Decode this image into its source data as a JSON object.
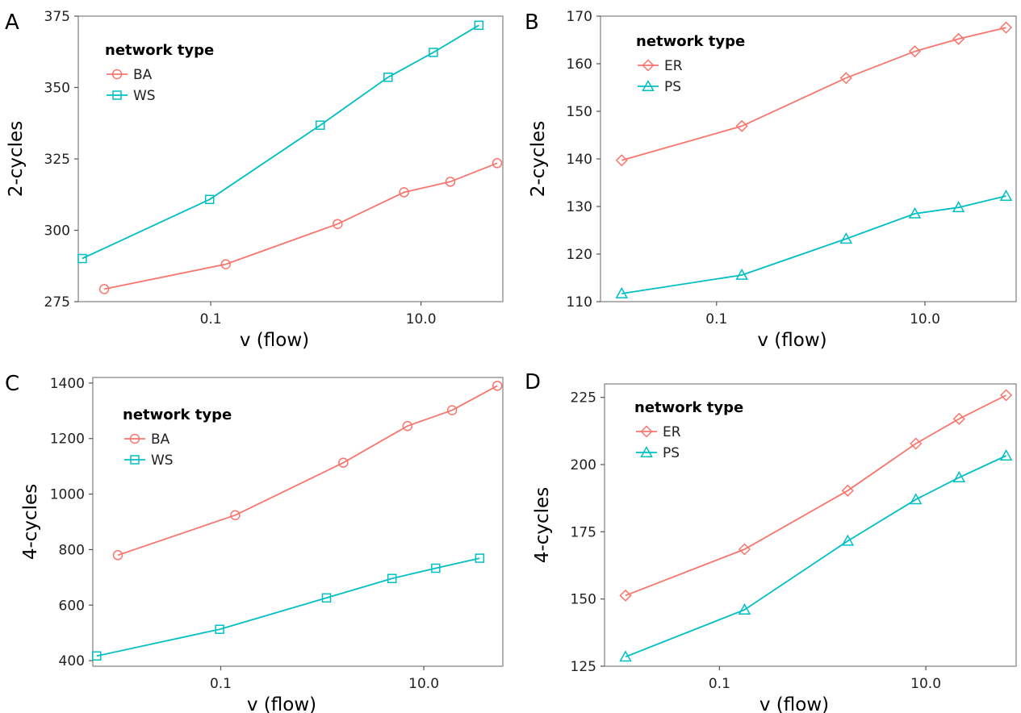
{
  "chart_data": [
    {
      "panel_label": "A",
      "type": "line",
      "xlabel": "v (flow)",
      "ylabel": "2-cycles",
      "x_scale": "log10",
      "xlim": [
        0.0055,
        60
      ],
      "ylim": [
        275,
        375
      ],
      "x_ticks": [
        0.1,
        10.0
      ],
      "x_tick_labels": [
        "0.1",
        "10.0"
      ],
      "y_ticks": [
        275,
        300,
        325,
        350,
        375
      ],
      "y_tick_labels": [
        "275",
        "300",
        "325",
        "350",
        "375"
      ],
      "legend_title": "network type",
      "legend_position": "top-left",
      "series": [
        {
          "name": "BA",
          "color": "#F8766D",
          "marker": "circle",
          "x": [
            0.0097,
            0.139,
            1.61,
            6.9,
            19.0,
            53.0
          ],
          "y": [
            279.4,
            288.1,
            302.2,
            313.3,
            317.0,
            323.5
          ]
        },
        {
          "name": "WS",
          "color": "#00BFC4",
          "marker": "square",
          "x": [
            0.006,
            0.0975,
            1.1,
            4.86,
            13.1,
            35.5
          ],
          "y": [
            290.1,
            310.8,
            336.8,
            353.6,
            362.3,
            371.8
          ]
        }
      ]
    },
    {
      "panel_label": "B",
      "type": "line",
      "xlabel": "v (flow)",
      "ylabel": "2-cycles",
      "x_scale": "log10",
      "xlim": [
        0.0077,
        75
      ],
      "ylim": [
        110,
        170
      ],
      "x_ticks": [
        0.1,
        10.0
      ],
      "x_tick_labels": [
        "0.1",
        "10.0"
      ],
      "y_ticks": [
        110,
        120,
        130,
        140,
        150,
        160,
        170
      ],
      "y_tick_labels": [
        "110",
        "120",
        "130",
        "140",
        "150",
        "160",
        "170"
      ],
      "legend_title": "network type",
      "legend_position": "top-left",
      "series": [
        {
          "name": "ER",
          "color": "#F8766D",
          "marker": "diamond",
          "x": [
            0.0123,
            0.175,
            1.75,
            8.0,
            21.0,
            60.0
          ],
          "y": [
            139.7,
            146.9,
            157.0,
            162.6,
            165.2,
            167.6
          ]
        },
        {
          "name": "PS",
          "color": "#00BFC4",
          "marker": "triangle",
          "x": [
            0.0123,
            0.175,
            1.75,
            8.0,
            21.0,
            60.0
          ],
          "y": [
            111.7,
            115.6,
            123.2,
            128.5,
            129.8,
            132.2
          ]
        }
      ]
    },
    {
      "panel_label": "C",
      "type": "line",
      "xlabel": "v (flow)",
      "ylabel": "4-cycles",
      "x_scale": "log10",
      "xlim": [
        0.0055,
        60
      ],
      "ylim": [
        380,
        1420
      ],
      "x_ticks": [
        0.1,
        10.0
      ],
      "x_tick_labels": [
        "0.1",
        "10.0"
      ],
      "y_ticks": [
        400,
        600,
        800,
        1000,
        1200,
        1400
      ],
      "y_tick_labels": [
        "400",
        "600",
        "800",
        "1000",
        "1200",
        "1400"
      ],
      "legend_title": "network type",
      "legend_position": "top-left",
      "series": [
        {
          "name": "BA",
          "color": "#F8766D",
          "marker": "circle",
          "x": [
            0.0097,
            0.139,
            1.61,
            6.9,
            19.0,
            53.0
          ],
          "y": [
            780,
            924,
            1113,
            1245,
            1302,
            1390
          ]
        },
        {
          "name": "WS",
          "color": "#00BFC4",
          "marker": "square",
          "x": [
            0.006,
            0.0975,
            1.1,
            4.86,
            13.1,
            35.5
          ],
          "y": [
            417,
            513,
            626,
            696,
            733,
            769
          ]
        }
      ]
    },
    {
      "panel_label": "D",
      "type": "line",
      "xlabel": "v (flow)",
      "ylabel": "4-cycles",
      "x_scale": "log10",
      "xlim": [
        0.0077,
        75
      ],
      "ylim": [
        125,
        230
      ],
      "x_ticks": [
        0.1,
        10.0
      ],
      "x_tick_labels": [
        "0.1",
        "10.0"
      ],
      "y_ticks": [
        125,
        150,
        175,
        200,
        225
      ],
      "y_tick_labels": [
        "125",
        "150",
        "175",
        "200",
        "225"
      ],
      "legend_title": "network type",
      "legend_position": "top-left",
      "series": [
        {
          "name": "ER",
          "color": "#F8766D",
          "marker": "diamond",
          "x": [
            0.0123,
            0.175,
            1.75,
            8.0,
            21.0,
            60.0
          ],
          "y": [
            151.3,
            168.5,
            190.3,
            207.8,
            217.0,
            225.8
          ]
        },
        {
          "name": "PS",
          "color": "#00BFC4",
          "marker": "triangle",
          "x": [
            0.0123,
            0.175,
            1.75,
            8.0,
            21.0,
            60.0
          ],
          "y": [
            128.5,
            146.0,
            171.6,
            187.0,
            195.2,
            203.3
          ]
        }
      ]
    }
  ]
}
